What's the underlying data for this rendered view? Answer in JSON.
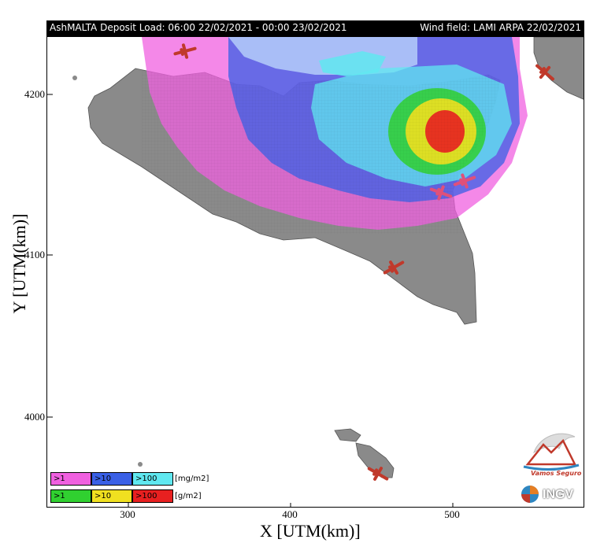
{
  "header": {
    "left_title": "AshMALTA Deposit Load: 06:00 22/02/2021 - 00:00 23/02/2021",
    "right_title": "Wind field: LAMI ARPA 22/02/2021"
  },
  "axes": {
    "xlabel": "X [UTM(km)]",
    "ylabel": "Y [UTM(km)]",
    "xticks": [
      "300",
      "400",
      "500"
    ],
    "yticks": [
      "4200",
      "4100",
      "4000"
    ]
  },
  "legend": {
    "row1": {
      "cells": [
        ">1",
        ">10",
        ">100"
      ],
      "unit": "[mg/m2]",
      "colors": [
        "#f060e0",
        "#3a60e6",
        "#60e8f0"
      ]
    },
    "row2": {
      "cells": [
        ">1",
        ">10",
        ">100"
      ],
      "unit": "[g/m2]",
      "colors": [
        "#30d030",
        "#f0e020",
        "#e82020"
      ]
    }
  },
  "logos": {
    "vamos": "Vamos Seguro",
    "ingv": "INGV"
  },
  "icons": [
    "airport-icon"
  ]
}
